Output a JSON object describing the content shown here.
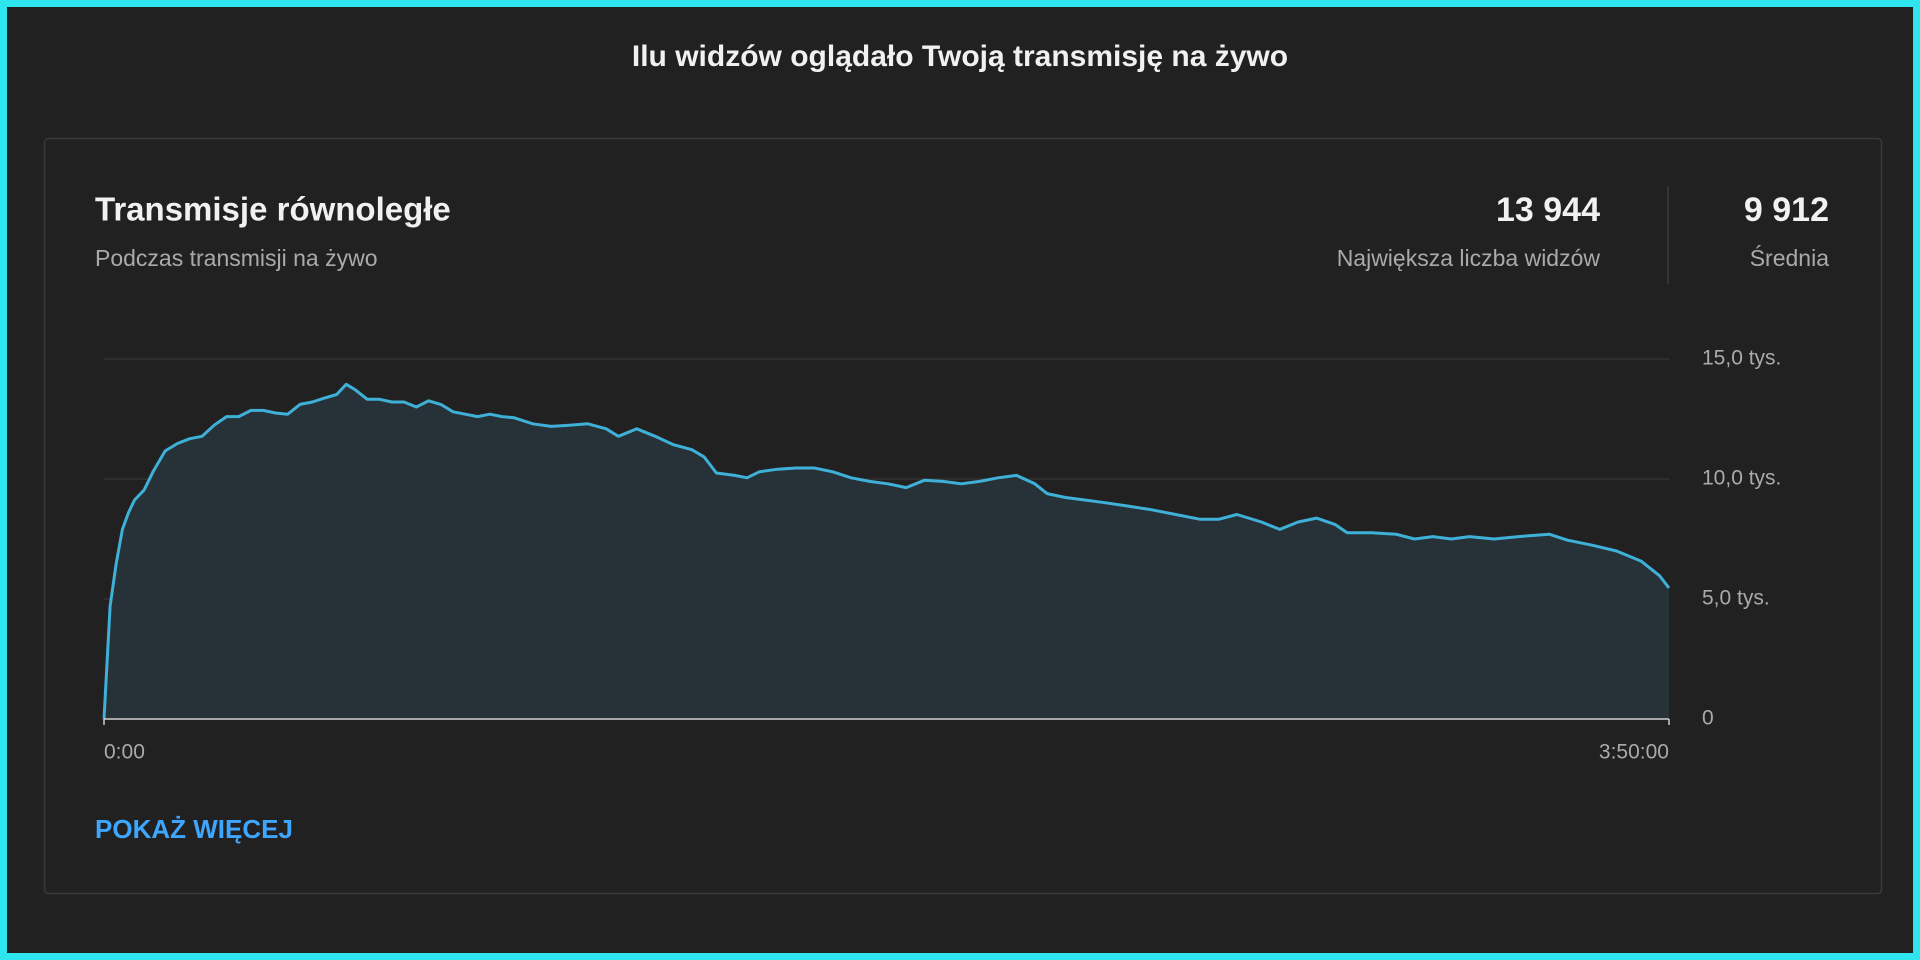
{
  "header": {
    "title": "Ilu widzów oglądało Twoją transmisję na żywo"
  },
  "card": {
    "title": "Transmisje równoległe",
    "subtitle": "Podczas transmisji na żywo",
    "stats": [
      {
        "value": "13 944",
        "label": "Największa liczba widzów"
      },
      {
        "value": "9 912",
        "label": "Średnia"
      }
    ],
    "more": "POKAŻ WIĘCEJ"
  },
  "chart_data": {
    "type": "area",
    "x": [
      0,
      0.9,
      1.8,
      2.7,
      3.6,
      4.5,
      5.9,
      7.2,
      9,
      10.8,
      12.6,
      14.4,
      16.2,
      18,
      19.8,
      21.6,
      23.4,
      25.2,
      27,
      28.8,
      30.6,
      32.4,
      34.2,
      35.6,
      36.9,
      38.7,
      40.5,
      42.3,
      44.1,
      45.9,
      47.7,
      49.5,
      51.3,
      53.1,
      54.9,
      56.7,
      58.5,
      60.3,
      63,
      65.7,
      68.4,
      71.1,
      73.8,
      75.6,
      78.3,
      81,
      83.7,
      86.4,
      88.2,
      90,
      92.7,
      94.5,
      96.3,
      99,
      101.7,
      104.4,
      107.1,
      109.8,
      112.5,
      115.2,
      117.9,
      120.6,
      123.3,
      126,
      128.7,
      131.4,
      134.1,
      136.8,
      138.6,
      141.3,
      144,
      146.7,
      150.3,
      153.9,
      157.5,
      161.1,
      163.8,
      166.5,
      170.1,
      172.8,
      175.5,
      178.2,
      180.9,
      182.7,
      186.3,
      189.9,
      192.6,
      195.3,
      198,
      200.7,
      204.3,
      207.9,
      212.4,
      215.1,
      218.7,
      222.3,
      225.9,
      228.6,
      230
    ],
    "series": [
      {
        "color": "#3fb0d8",
        "fill": "#263238",
        "values": [
          0,
          4700,
          6480,
          7900,
          8600,
          9130,
          9540,
          10300,
          11170,
          11480,
          11680,
          11780,
          12240,
          12600,
          12600,
          12860,
          12860,
          12750,
          12700,
          13110,
          13210,
          13370,
          13520,
          13944,
          13720,
          13320,
          13320,
          13210,
          13210,
          13000,
          13260,
          13110,
          12800,
          12700,
          12600,
          12700,
          12600,
          12550,
          12300,
          12190,
          12240,
          12300,
          12090,
          11780,
          12090,
          11780,
          11430,
          11220,
          10920,
          10250,
          10150,
          10050,
          10300,
          10410,
          10460,
          10460,
          10300,
          10050,
          9900,
          9800,
          9640,
          9950,
          9900,
          9800,
          9900,
          10050,
          10150,
          9800,
          9390,
          9230,
          9130,
          9030,
          8880,
          8720,
          8520,
          8320,
          8320,
          8520,
          8210,
          7900,
          8210,
          8370,
          8110,
          7760,
          7760,
          7700,
          7500,
          7600,
          7500,
          7600,
          7500,
          7600,
          7700,
          7450,
          7240,
          7000,
          6580,
          5970,
          5460
        ]
      }
    ],
    "xlim": [
      0,
      230
    ],
    "xticks": [
      {
        "value": 0,
        "label": "0:00"
      },
      {
        "value": 230,
        "label": "3:50:00"
      }
    ],
    "ylim": [
      0,
      15000
    ],
    "yticks": [
      0,
      {
        "value": 5000,
        "label": "5,0 tys."
      },
      {
        "value": 10000,
        "label": "10,0 tys."
      },
      {
        "value": 15000,
        "label": "15,0 tys."
      }
    ],
    "grid": true
  }
}
